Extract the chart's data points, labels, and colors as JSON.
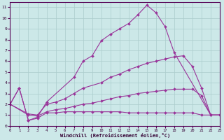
{
  "xlabel": "Windchill (Refroidissement éolien,°C)",
  "background_color": "#cce8e8",
  "line_color": "#993399",
  "grid_color": "#aacccc",
  "xlim": [
    0,
    23
  ],
  "ylim": [
    0,
    11.5
  ],
  "xticks": [
    0,
    1,
    2,
    3,
    4,
    5,
    6,
    7,
    8,
    9,
    10,
    11,
    12,
    13,
    14,
    15,
    16,
    17,
    18,
    19,
    20,
    21,
    22,
    23
  ],
  "yticks": [
    0,
    1,
    2,
    3,
    4,
    5,
    6,
    7,
    8,
    9,
    10,
    11
  ],
  "series": [
    {
      "x": [
        0,
        1,
        2,
        3,
        4,
        7,
        8,
        9,
        10,
        11,
        12,
        13,
        14,
        15,
        16,
        17,
        18,
        22,
        23
      ],
      "y": [
        2,
        3.5,
        0.5,
        0.8,
        2.2,
        4.5,
        6.0,
        6.5,
        7.9,
        8.5,
        9.0,
        9.5,
        10.3,
        11.2,
        10.5,
        9.2,
        6.8,
        1.0,
        1.0
      ]
    },
    {
      "x": [
        0,
        2,
        3,
        4,
        5,
        6,
        7,
        8,
        10,
        11,
        12,
        13,
        14,
        15,
        16,
        17,
        18,
        19,
        20,
        21,
        22,
        23
      ],
      "y": [
        2,
        1.1,
        1.0,
        2.0,
        2.2,
        2.5,
        3.0,
        3.5,
        4.0,
        4.5,
        4.8,
        5.2,
        5.5,
        5.8,
        6.0,
        6.2,
        6.4,
        6.5,
        5.5,
        3.5,
        1.0,
        1.0
      ]
    },
    {
      "x": [
        0,
        2,
        3,
        4,
        5,
        6,
        7,
        8,
        9,
        10,
        11,
        12,
        13,
        14,
        15,
        16,
        17,
        18,
        19,
        20,
        21,
        22,
        23
      ],
      "y": [
        2,
        1.0,
        0.9,
        1.3,
        1.5,
        1.6,
        1.8,
        2.0,
        2.1,
        2.3,
        2.5,
        2.7,
        2.8,
        3.0,
        3.1,
        3.2,
        3.3,
        3.4,
        3.4,
        3.4,
        2.8,
        1.0,
        1.0
      ]
    },
    {
      "x": [
        0,
        1,
        2,
        3,
        4,
        5,
        6,
        7,
        8,
        9,
        10,
        11,
        12,
        13,
        14,
        15,
        16,
        17,
        18,
        19,
        20,
        21,
        22,
        23
      ],
      "y": [
        2,
        3.5,
        0.5,
        0.7,
        1.2,
        1.2,
        1.3,
        1.3,
        1.3,
        1.3,
        1.3,
        1.3,
        1.3,
        1.2,
        1.2,
        1.2,
        1.2,
        1.2,
        1.2,
        1.2,
        1.2,
        1.0,
        1.0,
        1.0
      ]
    }
  ]
}
